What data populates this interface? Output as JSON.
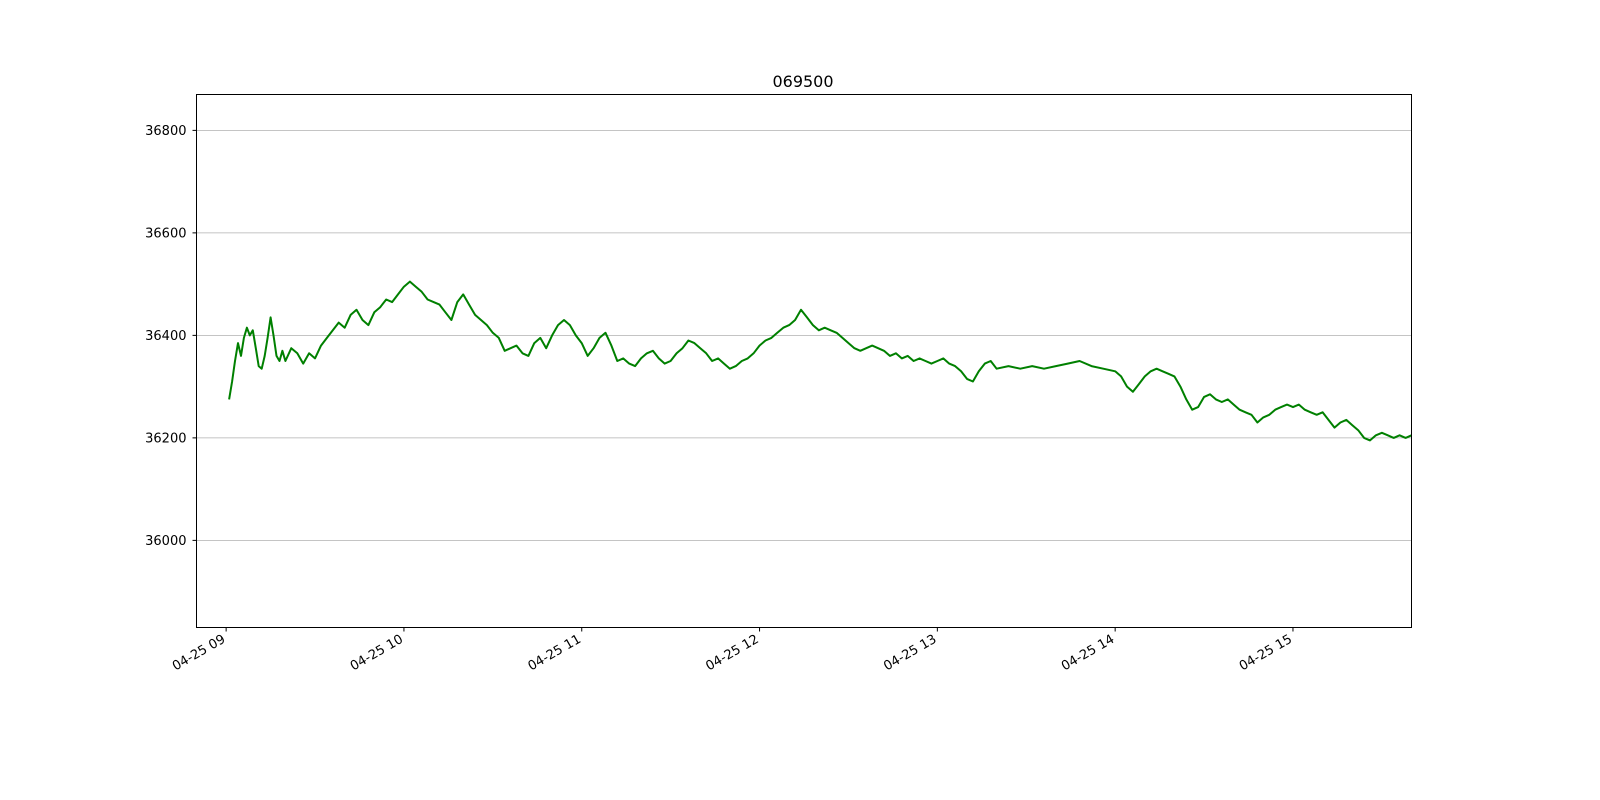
{
  "chart_data": {
    "type": "line",
    "title": "069500",
    "xlabel": "",
    "ylabel": "",
    "x_range": [
      "2023-04-25 08:50",
      "2023-04-25 15:40"
    ],
    "ylim": [
      35830,
      36870
    ],
    "y_ticks": [
      36000,
      36200,
      36400,
      36600,
      36800
    ],
    "x_ticks": [
      "09:00",
      "10:00",
      "11:00",
      "12:00",
      "13:00",
      "14:00",
      "15:00"
    ],
    "x_tick_labels": [
      "04-25 09",
      "04-25 10",
      "04-25 11",
      "04-25 12",
      "04-25 13",
      "04-25 14",
      "04-25 15"
    ],
    "grid": "y-major",
    "series": [
      {
        "color": "#008000",
        "points": [
          [
            "09:01",
            36275
          ],
          [
            "09:02",
            36310
          ],
          [
            "09:03",
            36350
          ],
          [
            "09:04",
            36385
          ],
          [
            "09:05",
            36360
          ],
          [
            "09:06",
            36395
          ],
          [
            "09:07",
            36415
          ],
          [
            "09:08",
            36400
          ],
          [
            "09:09",
            36410
          ],
          [
            "09:10",
            36375
          ],
          [
            "09:11",
            36340
          ],
          [
            "09:12",
            36335
          ],
          [
            "09:13",
            36360
          ],
          [
            "09:14",
            36395
          ],
          [
            "09:15",
            36435
          ],
          [
            "09:16",
            36400
          ],
          [
            "09:17",
            36360
          ],
          [
            "09:18",
            36350
          ],
          [
            "09:19",
            36370
          ],
          [
            "09:20",
            36350
          ],
          [
            "09:22",
            36375
          ],
          [
            "09:24",
            36365
          ],
          [
            "09:26",
            36345
          ],
          [
            "09:28",
            36365
          ],
          [
            "09:30",
            36355
          ],
          [
            "09:32",
            36380
          ],
          [
            "09:34",
            36395
          ],
          [
            "09:36",
            36410
          ],
          [
            "09:38",
            36425
          ],
          [
            "09:40",
            36415
          ],
          [
            "09:42",
            36440
          ],
          [
            "09:44",
            36450
          ],
          [
            "09:46",
            36430
          ],
          [
            "09:48",
            36420
          ],
          [
            "09:50",
            36445
          ],
          [
            "09:52",
            36455
          ],
          [
            "09:54",
            36470
          ],
          [
            "09:56",
            36465
          ],
          [
            "09:58",
            36480
          ],
          [
            "10:00",
            36495
          ],
          [
            "10:02",
            36505
          ],
          [
            "10:04",
            36495
          ],
          [
            "10:06",
            36485
          ],
          [
            "10:08",
            36470
          ],
          [
            "10:10",
            36465
          ],
          [
            "10:12",
            36460
          ],
          [
            "10:14",
            36445
          ],
          [
            "10:16",
            36430
          ],
          [
            "10:18",
            36465
          ],
          [
            "10:20",
            36480
          ],
          [
            "10:22",
            36460
          ],
          [
            "10:24",
            36440
          ],
          [
            "10:26",
            36430
          ],
          [
            "10:28",
            36420
          ],
          [
            "10:30",
            36405
          ],
          [
            "10:32",
            36395
          ],
          [
            "10:34",
            36370
          ],
          [
            "10:36",
            36375
          ],
          [
            "10:38",
            36380
          ],
          [
            "10:40",
            36365
          ],
          [
            "10:42",
            36360
          ],
          [
            "10:44",
            36385
          ],
          [
            "10:46",
            36395
          ],
          [
            "10:48",
            36375
          ],
          [
            "10:50",
            36400
          ],
          [
            "10:52",
            36420
          ],
          [
            "10:54",
            36430
          ],
          [
            "10:56",
            36420
          ],
          [
            "10:58",
            36400
          ],
          [
            "11:00",
            36385
          ],
          [
            "11:02",
            36360
          ],
          [
            "11:04",
            36375
          ],
          [
            "11:06",
            36395
          ],
          [
            "11:08",
            36405
          ],
          [
            "11:10",
            36380
          ],
          [
            "11:12",
            36350
          ],
          [
            "11:14",
            36355
          ],
          [
            "11:16",
            36345
          ],
          [
            "11:18",
            36340
          ],
          [
            "11:20",
            36355
          ],
          [
            "11:22",
            36365
          ],
          [
            "11:24",
            36370
          ],
          [
            "11:26",
            36355
          ],
          [
            "11:28",
            36345
          ],
          [
            "11:30",
            36350
          ],
          [
            "11:32",
            36365
          ],
          [
            "11:34",
            36375
          ],
          [
            "11:36",
            36390
          ],
          [
            "11:38",
            36385
          ],
          [
            "11:40",
            36375
          ],
          [
            "11:42",
            36365
          ],
          [
            "11:44",
            36350
          ],
          [
            "11:46",
            36355
          ],
          [
            "11:48",
            36345
          ],
          [
            "11:50",
            36335
          ],
          [
            "11:52",
            36340
          ],
          [
            "11:54",
            36350
          ],
          [
            "11:56",
            36355
          ],
          [
            "11:58",
            36365
          ],
          [
            "12:00",
            36380
          ],
          [
            "12:02",
            36390
          ],
          [
            "12:04",
            36395
          ],
          [
            "12:06",
            36405
          ],
          [
            "12:08",
            36415
          ],
          [
            "12:10",
            36420
          ],
          [
            "12:12",
            36430
          ],
          [
            "12:14",
            36450
          ],
          [
            "12:16",
            36435
          ],
          [
            "12:18",
            36420
          ],
          [
            "12:20",
            36410
          ],
          [
            "12:22",
            36415
          ],
          [
            "12:24",
            36410
          ],
          [
            "12:26",
            36405
          ],
          [
            "12:28",
            36395
          ],
          [
            "12:30",
            36385
          ],
          [
            "12:32",
            36375
          ],
          [
            "12:34",
            36370
          ],
          [
            "12:36",
            36375
          ],
          [
            "12:38",
            36380
          ],
          [
            "12:40",
            36375
          ],
          [
            "12:42",
            36370
          ],
          [
            "12:44",
            36360
          ],
          [
            "12:46",
            36365
          ],
          [
            "12:48",
            36355
          ],
          [
            "12:50",
            36360
          ],
          [
            "12:52",
            36350
          ],
          [
            "12:54",
            36355
          ],
          [
            "12:56",
            36350
          ],
          [
            "12:58",
            36345
          ],
          [
            "13:00",
            36350
          ],
          [
            "13:02",
            36355
          ],
          [
            "13:04",
            36345
          ],
          [
            "13:06",
            36340
          ],
          [
            "13:08",
            36330
          ],
          [
            "13:10",
            36315
          ],
          [
            "13:12",
            36310
          ],
          [
            "13:14",
            36330
          ],
          [
            "13:16",
            36345
          ],
          [
            "13:18",
            36350
          ],
          [
            "13:20",
            36335
          ],
          [
            "13:24",
            36340
          ],
          [
            "13:28",
            36335
          ],
          [
            "13:32",
            36340
          ],
          [
            "13:36",
            36335
          ],
          [
            "13:40",
            36340
          ],
          [
            "13:44",
            36345
          ],
          [
            "13:48",
            36350
          ],
          [
            "13:52",
            36340
          ],
          [
            "13:56",
            36335
          ],
          [
            "14:00",
            36330
          ],
          [
            "14:02",
            36320
          ],
          [
            "14:04",
            36300
          ],
          [
            "14:06",
            36290
          ],
          [
            "14:08",
            36305
          ],
          [
            "14:10",
            36320
          ],
          [
            "14:12",
            36330
          ],
          [
            "14:14",
            36335
          ],
          [
            "14:16",
            36330
          ],
          [
            "14:18",
            36325
          ],
          [
            "14:20",
            36320
          ],
          [
            "14:22",
            36300
          ],
          [
            "14:24",
            36275
          ],
          [
            "14:26",
            36255
          ],
          [
            "14:28",
            36260
          ],
          [
            "14:30",
            36280
          ],
          [
            "14:32",
            36285
          ],
          [
            "14:34",
            36275
          ],
          [
            "14:36",
            36270
          ],
          [
            "14:38",
            36275
          ],
          [
            "14:40",
            36265
          ],
          [
            "14:42",
            36255
          ],
          [
            "14:44",
            36250
          ],
          [
            "14:46",
            36245
          ],
          [
            "14:48",
            36230
          ],
          [
            "14:50",
            36240
          ],
          [
            "14:52",
            36245
          ],
          [
            "14:54",
            36255
          ],
          [
            "14:56",
            36260
          ],
          [
            "14:58",
            36265
          ],
          [
            "15:00",
            36260
          ],
          [
            "15:02",
            36265
          ],
          [
            "15:04",
            36255
          ],
          [
            "15:06",
            36250
          ],
          [
            "15:08",
            36245
          ],
          [
            "15:10",
            36250
          ],
          [
            "15:12",
            36235
          ],
          [
            "15:14",
            36220
          ],
          [
            "15:16",
            36230
          ],
          [
            "15:18",
            36235
          ],
          [
            "15:20",
            36225
          ],
          [
            "15:22",
            36215
          ],
          [
            "15:24",
            36200
          ],
          [
            "15:26",
            36195
          ],
          [
            "15:28",
            36205
          ],
          [
            "15:30",
            36210
          ],
          [
            "15:32",
            36205
          ],
          [
            "15:34",
            36200
          ],
          [
            "15:36",
            36205
          ],
          [
            "15:38",
            36200
          ],
          [
            "15:40",
            36205
          ]
        ]
      }
    ]
  }
}
